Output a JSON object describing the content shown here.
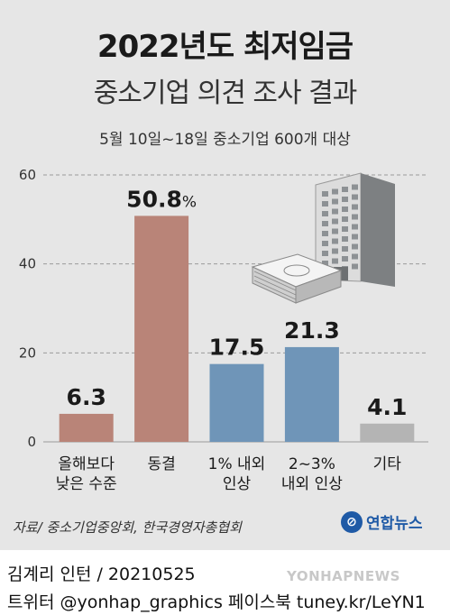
{
  "title": "2022년도 최저임금",
  "subtitle": "중소기업 의견 조사 결과",
  "note": "5월 10일~18일 중소기업 600개 대상",
  "source": "자료/ 중소기업중앙회, 한국경영자총협회",
  "logo": "연합뉴스",
  "credit1": "김계리 인턴 / 20210525",
  "credit2": "트위터 @yonhap_graphics  페이스북 tuney.kr/LeYN1",
  "watermark": "YONHAPNEWS",
  "colors": {
    "freeze": "#b98478",
    "raise": "#6f95b8",
    "other": "#b4b4b4",
    "background": "#e6e6e6"
  },
  "icons": [
    "office-building-icon",
    "money-stack-icon"
  ],
  "chart_data": {
    "type": "bar",
    "categories": [
      [
        "올해보다",
        "낮은 수준"
      ],
      [
        "동결"
      ],
      [
        "1% 내외",
        "인상"
      ],
      [
        "2~3%",
        "내외 인상"
      ],
      [
        "기타"
      ]
    ],
    "values": [
      6.3,
      50.8,
      17.5,
      21.3,
      4.1
    ],
    "value_labels": [
      "6.3",
      "50.8",
      "17.5",
      "21.3",
      "4.1"
    ],
    "unit": "%",
    "ylim": [
      0,
      60
    ],
    "yticks": [
      0,
      20,
      40,
      60
    ],
    "grid": true
  }
}
